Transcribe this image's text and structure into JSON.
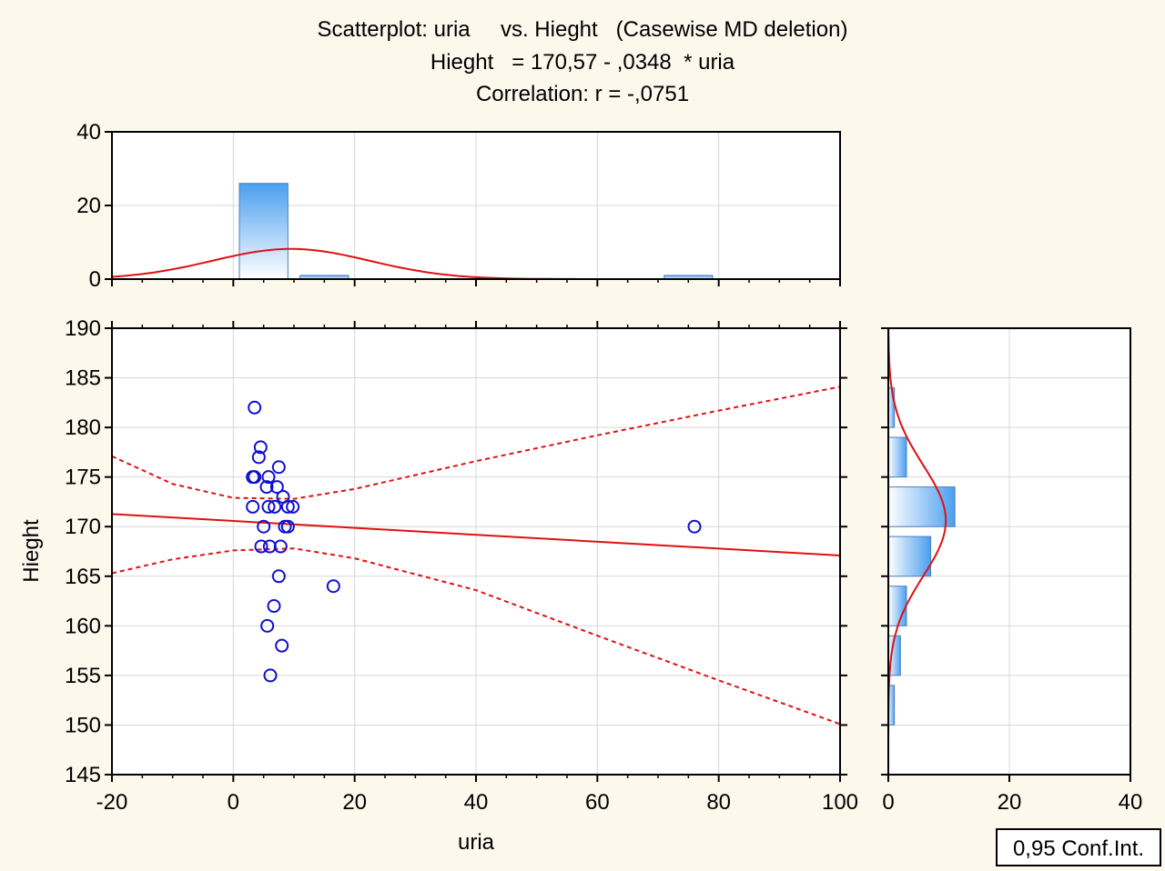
{
  "chart_data": {
    "type": "scatter",
    "title": {
      "line1": "Scatterplot: uria     vs. Hieght   (Casewise MD deletion)",
      "line2": "Hieght   = 170,57 - ,0348  * uria",
      "line3": "Correlation: r = -,0751"
    },
    "xlabel": "uria",
    "ylabel": "Hieght",
    "xlim": [
      -20,
      100
    ],
    "ylim": [
      145,
      190
    ],
    "x_ticks": [
      "-20",
      "0",
      "20",
      "40",
      "60",
      "80",
      "100"
    ],
    "y_ticks": [
      "145",
      "150",
      "155",
      "160",
      "165",
      "170",
      "175",
      "180",
      "185",
      "190"
    ],
    "points": [
      {
        "x": 3.5,
        "y": 182
      },
      {
        "x": 4.5,
        "y": 178
      },
      {
        "x": 4.2,
        "y": 177
      },
      {
        "x": 7.5,
        "y": 176
      },
      {
        "x": 3.2,
        "y": 175
      },
      {
        "x": 3.5,
        "y": 175
      },
      {
        "x": 5.8,
        "y": 175
      },
      {
        "x": 5.5,
        "y": 174
      },
      {
        "x": 7.2,
        "y": 174
      },
      {
        "x": 8.2,
        "y": 173
      },
      {
        "x": 3.2,
        "y": 172
      },
      {
        "x": 5.8,
        "y": 172
      },
      {
        "x": 6.8,
        "y": 172
      },
      {
        "x": 9.0,
        "y": 172
      },
      {
        "x": 9.8,
        "y": 172
      },
      {
        "x": 5.0,
        "y": 170
      },
      {
        "x": 8.5,
        "y": 170
      },
      {
        "x": 9.0,
        "y": 170
      },
      {
        "x": 76.0,
        "y": 170
      },
      {
        "x": 4.6,
        "y": 168
      },
      {
        "x": 6.0,
        "y": 168
      },
      {
        "x": 7.8,
        "y": 168
      },
      {
        "x": 7.5,
        "y": 165
      },
      {
        "x": 16.5,
        "y": 164
      },
      {
        "x": 6.7,
        "y": 162
      },
      {
        "x": 5.6,
        "y": 160
      },
      {
        "x": 8.0,
        "y": 158
      },
      {
        "x": 6.1,
        "y": 155
      }
    ],
    "regression": {
      "intercept": 170.57,
      "slope": -0.0348
    },
    "confidence_band": {
      "level_label": "0,95 Conf.Int.",
      "upper": [
        [
          -20,
          177.1
        ],
        [
          -10,
          174.3
        ],
        [
          0,
          172.9
        ],
        [
          10,
          172.8
        ],
        [
          20,
          173.8
        ],
        [
          40,
          176.6
        ],
        [
          60,
          179.2
        ],
        [
          80,
          181.7
        ],
        [
          100,
          184.1
        ]
      ],
      "lower": [
        [
          -20,
          165.3
        ],
        [
          -10,
          166.7
        ],
        [
          0,
          167.6
        ],
        [
          10,
          167.8
        ],
        [
          20,
          166.8
        ],
        [
          40,
          163.6
        ],
        [
          60,
          159.0
        ],
        [
          80,
          154.5
        ],
        [
          100,
          150.1
        ]
      ]
    },
    "x_histogram": {
      "ylim": [
        0,
        40
      ],
      "ticks": [
        "0",
        "20",
        "40"
      ],
      "bars": [
        {
          "x0": 1,
          "x1": 9,
          "count": 26
        },
        {
          "x0": 11,
          "x1": 19,
          "count": 1
        },
        {
          "x0": 71,
          "x1": 79,
          "count": 1
        }
      ],
      "normal_fit": {
        "mean": 9.5,
        "sd": 13.0,
        "peak": 8.2
      }
    },
    "y_histogram": {
      "xlim": [
        0,
        40
      ],
      "ticks": [
        "0",
        "20",
        "40"
      ],
      "bars": [
        {
          "y0": 150,
          "y1": 154,
          "count": 1
        },
        {
          "y0": 155,
          "y1": 159,
          "count": 2
        },
        {
          "y0": 160,
          "y1": 164,
          "count": 3
        },
        {
          "y0": 165,
          "y1": 169,
          "count": 7
        },
        {
          "y0": 170,
          "y1": 174,
          "count": 11
        },
        {
          "y0": 175,
          "y1": 179,
          "count": 3
        },
        {
          "y0": 180,
          "y1": 184,
          "count": 1
        }
      ],
      "normal_fit": {
        "mean": 170.6,
        "sd": 5.6,
        "peak": 9.5
      }
    },
    "colors": {
      "background": "#fdf8ec",
      "plot_area": "#ffffff",
      "points": "#1010d0",
      "fit_line": "#e01010",
      "bar_top": "#4a9ff0",
      "bar_bottom": "#ffffff",
      "grid": "#d8d8d8"
    },
    "grid": true
  }
}
